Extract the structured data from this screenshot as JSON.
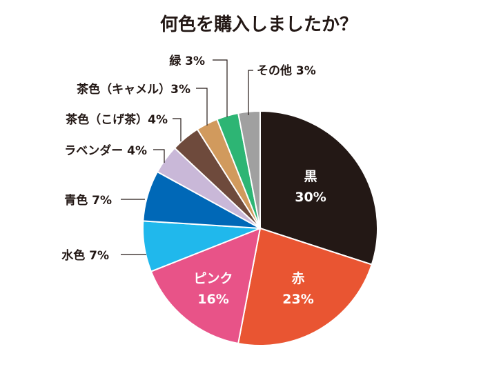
{
  "chart_data": {
    "type": "pie",
    "title": "何色を購入しましたか？",
    "start": "top",
    "direction": "clockwise",
    "slices": [
      {
        "label": "黒",
        "value": 30,
        "display": "30%",
        "color": "#231815",
        "label_inside": true
      },
      {
        "label": "赤",
        "value": 23,
        "display": "23%",
        "color": "#e95532",
        "label_inside": true
      },
      {
        "label": "ピンク",
        "value": 16,
        "display": "16%",
        "color": "#e85388",
        "label_inside": true
      },
      {
        "label": "水色",
        "value": 7,
        "display": "水色 7%",
        "color": "#20b8ec",
        "label_inside": false
      },
      {
        "label": "青色",
        "value": 7,
        "display": "青色 7%",
        "color": "#0068b7",
        "label_inside": false
      },
      {
        "label": "ラベンダー",
        "value": 4,
        "display": "ラベンダー 4%",
        "color": "#c9b8d8",
        "label_inside": false
      },
      {
        "label": "茶色（こげ茶）",
        "value": 4,
        "display": "茶色（こげ茶）4%",
        "color": "#6e4a3c",
        "label_inside": false
      },
      {
        "label": "茶色（キャメル）",
        "value": 3,
        "display": "茶色（キャメル）3%",
        "color": "#d19a5d",
        "label_inside": false
      },
      {
        "label": "緑",
        "value": 3,
        "display": "緑 3%",
        "color": "#2db574",
        "label_inside": false
      },
      {
        "label": "その他",
        "value": 3,
        "display": "その他 3%",
        "color": "#a0a0a0",
        "label_inside": false
      }
    ]
  }
}
